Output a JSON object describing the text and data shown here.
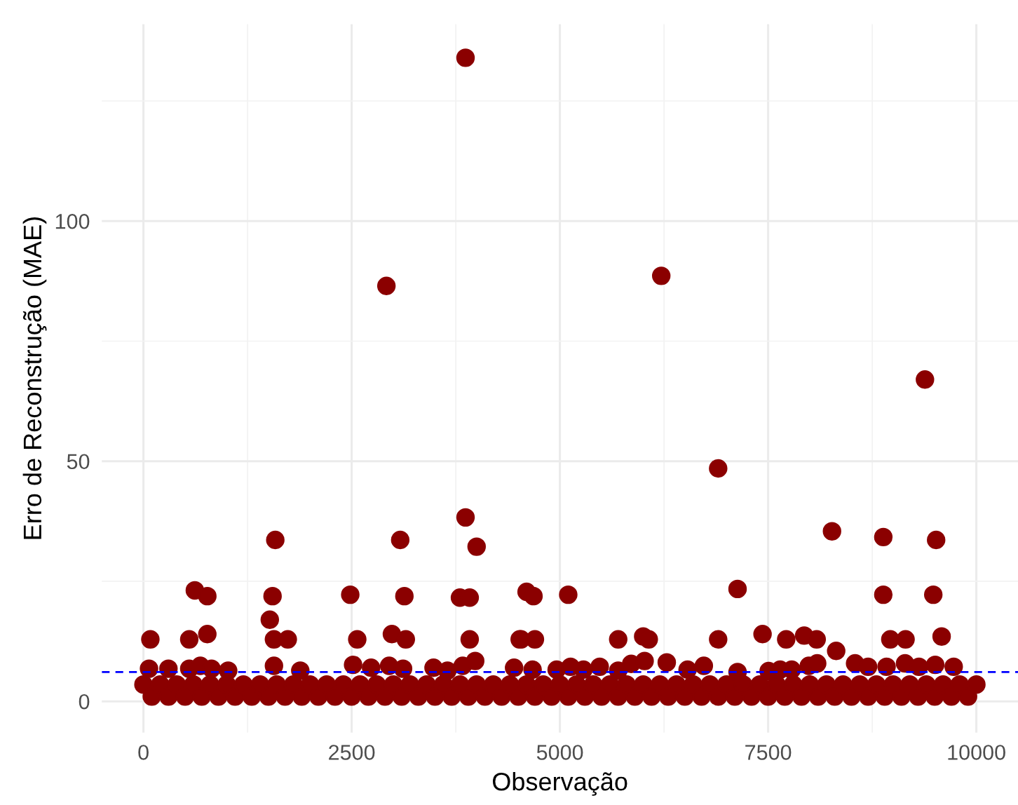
{
  "chart_data": {
    "type": "scatter",
    "xlabel": "Observação",
    "ylabel": "Erro de Reconstrução (MAE)",
    "x": [
      0,
      100,
      200,
      300,
      400,
      500,
      600,
      700,
      800,
      900,
      1000,
      1100,
      1200,
      1300,
      1400,
      1500,
      1600,
      1700,
      1800,
      1900,
      2000,
      2100,
      2200,
      2300,
      2400,
      2500,
      2600,
      2700,
      2800,
      2900,
      3000,
      3100,
      3200,
      3300,
      3400,
      3500,
      3600,
      3700,
      3800,
      3900,
      4000,
      4100,
      4200,
      4300,
      4400,
      4500,
      4600,
      4700,
      4800,
      4900,
      5000,
      5100,
      5200,
      5300,
      5400,
      5500,
      5600,
      5700,
      5800,
      5900,
      6000,
      6100,
      6200,
      6300,
      6400,
      6500,
      6600,
      6700,
      6800,
      6900,
      7000,
      7100,
      7200,
      7300,
      7400,
      7500,
      7600,
      7700,
      7800,
      7900,
      8000,
      8100,
      8200,
      8300,
      8400,
      8500,
      8600,
      8700,
      8800,
      8900,
      9000,
      9100,
      9200,
      9300,
      9400,
      9500,
      9600,
      9700,
      9800,
      9900,
      10000,
      3867,
      2917,
      6217,
      9383,
      3867,
      4000,
      1583,
      3083,
      617,
      767,
      1550,
      2483,
      3133,
      3800,
      3917,
      1517,
      767,
      83,
      550,
      1567,
      1733,
      2567,
      2983,
      3150,
      3917,
      4533,
      67,
      300,
      550,
      683,
      817,
      1017,
      1567,
      1883,
      2517,
      2733,
      2950,
      3117,
      3483,
      3650,
      3833,
      3983,
      4450,
      6900,
      8267,
      8883,
      9517,
      7133,
      4600,
      4683,
      5100,
      8883,
      9483,
      4517,
      4700,
      5700,
      6000,
      6067,
      6900,
      7433,
      7717,
      7933,
      8083,
      8317,
      8967,
      9150,
      9583,
      4672,
      4961,
      5128,
      5283,
      5478,
      5700,
      5856,
      6017,
      6283,
      6533,
      6728,
      7133,
      7506,
      7644,
      7783,
      7989,
      8089,
      8544,
      8700,
      8922,
      9144,
      9311,
      9506,
      9728
    ],
    "values": [
      3.5,
      1,
      3.5,
      1,
      3.5,
      1,
      3.5,
      1,
      3.5,
      1,
      3.5,
      1,
      3.5,
      1,
      3.5,
      1,
      3.5,
      1,
      3.5,
      1,
      3.5,
      1,
      3.5,
      1,
      3.5,
      1,
      3.5,
      1,
      3.5,
      1,
      3.5,
      1,
      3.5,
      1,
      3.5,
      1,
      3.5,
      1,
      3.5,
      1,
      3.5,
      1,
      3.5,
      1,
      3.5,
      1,
      3.5,
      1,
      3.5,
      1,
      3.5,
      1,
      3.5,
      1,
      3.5,
      1,
      3.5,
      1,
      3.5,
      1,
      3.5,
      1,
      3.5,
      1,
      3.5,
      1,
      3.5,
      1,
      3.5,
      1,
      3.5,
      1,
      3.5,
      1,
      3.5,
      1,
      3.5,
      1,
      3.5,
      1,
      3.5,
      1,
      3.5,
      1,
      3.5,
      1,
      3.5,
      1,
      3.5,
      1,
      3.5,
      1,
      3.5,
      1,
      3.5,
      1,
      3.5,
      1,
      3.5,
      1,
      3.5,
      134,
      86.5,
      88.6,
      67,
      38.3,
      32.2,
      33.6,
      33.6,
      23.1,
      21.9,
      21.9,
      22.2,
      21.9,
      21.6,
      21.6,
      17,
      14,
      12.9,
      12.9,
      12.9,
      12.9,
      12.9,
      14,
      12.9,
      12.9,
      12.9,
      6.8,
      6.8,
      6.8,
      7.4,
      6.8,
      6.4,
      7.4,
      6.4,
      7.6,
      7.0,
      7.4,
      6.8,
      7.0,
      6.4,
      7.4,
      8.4,
      7.0,
      48.5,
      35.4,
      34.2,
      33.6,
      23.4,
      22.8,
      21.9,
      22.2,
      22.2,
      22.2,
      12.9,
      12.9,
      12.9,
      13.5,
      12.9,
      12.9,
      14,
      12.9,
      13.7,
      12.9,
      10.5,
      12.9,
      12.9,
      13.5,
      6.6,
      6.6,
      7.2,
      6.6,
      7.2,
      6.4,
      7.8,
      8.4,
      8.1,
      6.6,
      7.4,
      6.1,
      6.3,
      6.6,
      6.6,
      7.4,
      7.9,
      7.9,
      7.2,
      7.2,
      7.9,
      7.2,
      7.6,
      7.2
    ],
    "color": "#8b0000",
    "marker": "circle",
    "xlim": [
      -500,
      10500
    ],
    "ylim": [
      -6.5,
      141
    ],
    "xticks": [
      0,
      2500,
      5000,
      7500,
      10000
    ],
    "yticks": [
      0,
      50,
      100
    ],
    "grid": true,
    "legend": false,
    "ref_lines": [
      {
        "axis": "y",
        "value": 6.1,
        "color": "#0000ff",
        "line_style": "dashed"
      }
    ]
  }
}
